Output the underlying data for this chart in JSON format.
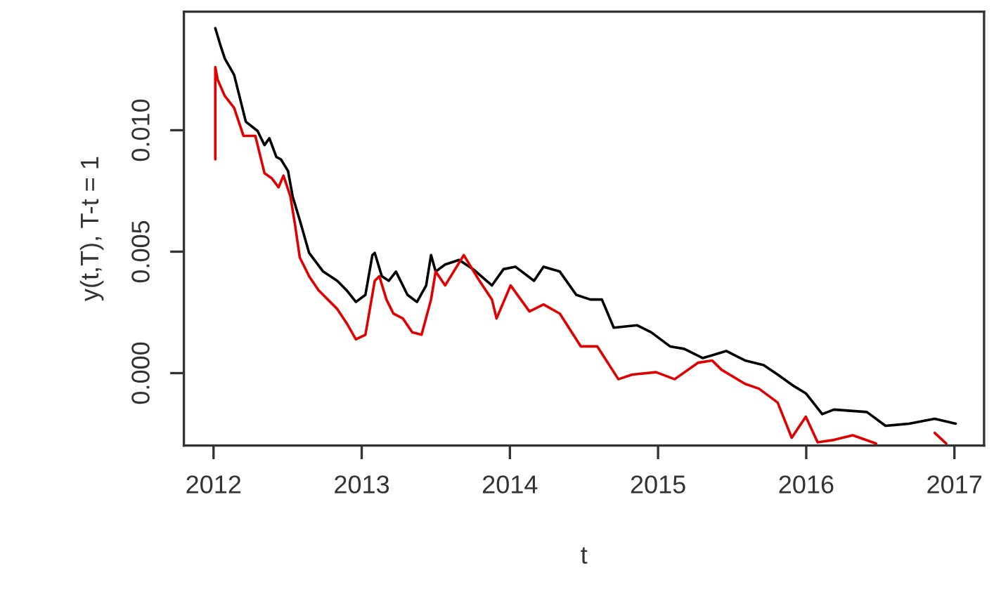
{
  "chart_data": {
    "type": "line",
    "xlabel": "t",
    "ylabel": "y(t,T), T-t = 1",
    "xlim": [
      2011.8,
      2017.2
    ],
    "ylim": [
      -0.00298,
      0.01488
    ],
    "xticks": [
      2012,
      2013,
      2014,
      2015,
      2016,
      2017
    ],
    "yticks": [
      {
        "value": 0,
        "label": "0.000"
      },
      {
        "value": 0.005,
        "label": "0.005"
      },
      {
        "value": 0.01,
        "label": "0.010"
      }
    ],
    "grid": false,
    "legend": false,
    "line_style": "solid",
    "marker": "none",
    "series": [
      {
        "color": "#000000",
        "x": [
          2012.012,
          2012.045,
          2012.076,
          2012.139,
          2012.171,
          2012.218,
          2012.297,
          2012.344,
          2012.377,
          2012.424,
          2012.455,
          2012.503,
          2012.534,
          2012.582,
          2012.645,
          2012.74,
          2012.835,
          2012.898,
          2012.961,
          2013.025,
          2013.072,
          2013.088,
          2013.136,
          2013.183,
          2013.231,
          2013.309,
          2013.373,
          2013.435,
          2013.468,
          2013.499,
          2013.563,
          2013.657,
          2013.752,
          2013.879,
          2013.957,
          2014.037,
          2014.163,
          2014.227,
          2014.337,
          2014.448,
          2014.543,
          2014.621,
          2014.701,
          2014.859,
          2014.954,
          2015.081,
          2015.176,
          2015.302,
          2015.46,
          2015.587,
          2015.712,
          2015.807,
          2015.918,
          2015.997,
          2016.108,
          2016.187,
          2016.409,
          2016.535,
          2016.693,
          2016.867,
          2017.009
        ],
        "values": [
          0.0142,
          0.01353,
          0.01295,
          0.01228,
          0.0115,
          0.01035,
          0.00997,
          0.00939,
          0.00967,
          0.0089,
          0.0088,
          0.00832,
          0.00727,
          0.0063,
          0.00495,
          0.00418,
          0.0038,
          0.00341,
          0.00293,
          0.00322,
          0.00486,
          0.00495,
          0.00399,
          0.0038,
          0.00418,
          0.00322,
          0.00293,
          0.00361,
          0.00486,
          0.00418,
          0.00447,
          0.00466,
          0.00428,
          0.00361,
          0.00428,
          0.00438,
          0.0038,
          0.00438,
          0.00418,
          0.00322,
          0.00303,
          0.00303,
          0.00187,
          0.00197,
          0.00168,
          0.0011,
          0.001,
          0.00062,
          0.00091,
          0.00052,
          0.00033,
          -6e-05,
          -0.00054,
          -0.00083,
          -0.00169,
          -0.0015,
          -0.0016,
          -0.00217,
          -0.00208,
          -0.00188,
          -0.00208
        ]
      },
      {
        "color": "#e00000",
        "x": [
          2012.012,
          2012.012,
          2012.028,
          2012.076,
          2012.139,
          2012.202,
          2012.282,
          2012.344,
          2012.392,
          2012.439,
          2012.472,
          2012.519,
          2012.55,
          2012.582,
          2012.645,
          2012.709,
          2012.771,
          2012.835,
          2012.898,
          2012.961,
          2013.025,
          2013.088,
          2013.119,
          2013.167,
          2013.214,
          2013.278,
          2013.341,
          2013.404,
          2013.468,
          2013.499,
          2013.563,
          2013.689,
          2013.784,
          2013.879,
          2013.91,
          2014.005,
          2014.132,
          2014.227,
          2014.337,
          2014.479,
          2014.59,
          2014.732,
          2014.827,
          2014.986,
          2015.112,
          2015.271,
          2015.365,
          2015.428,
          2015.587,
          2015.681,
          2015.807,
          2015.902,
          2015.997,
          2016.077,
          2016.187,
          2016.314,
          2016.471,
          2016.6,
          2016.867,
          2016.945
        ],
        "values": [
          0.0088,
          0.0126,
          0.01208,
          0.01141,
          0.01092,
          0.00977,
          0.00977,
          0.00823,
          0.00803,
          0.00765,
          0.00813,
          0.00727,
          0.00611,
          0.00476,
          0.00399,
          0.00341,
          0.00303,
          0.00264,
          0.00206,
          0.00139,
          0.00158,
          0.0038,
          0.00399,
          0.00303,
          0.00245,
          0.00225,
          0.00168,
          0.00158,
          0.00303,
          0.00418,
          0.00361,
          0.00486,
          0.0039,
          0.00303,
          0.00225,
          0.00361,
          0.00254,
          0.00283,
          0.00245,
          0.0011,
          0.0011,
          -0.00025,
          -6e-05,
          4e-05,
          -0.00025,
          0.00043,
          0.00052,
          0.00014,
          -0.00044,
          -0.00064,
          -0.00121,
          -0.00266,
          -0.00179,
          -0.00285,
          -0.00275,
          -0.00256,
          -0.0029,
          null,
          -0.00246,
          -0.0029
        ]
      }
    ]
  }
}
